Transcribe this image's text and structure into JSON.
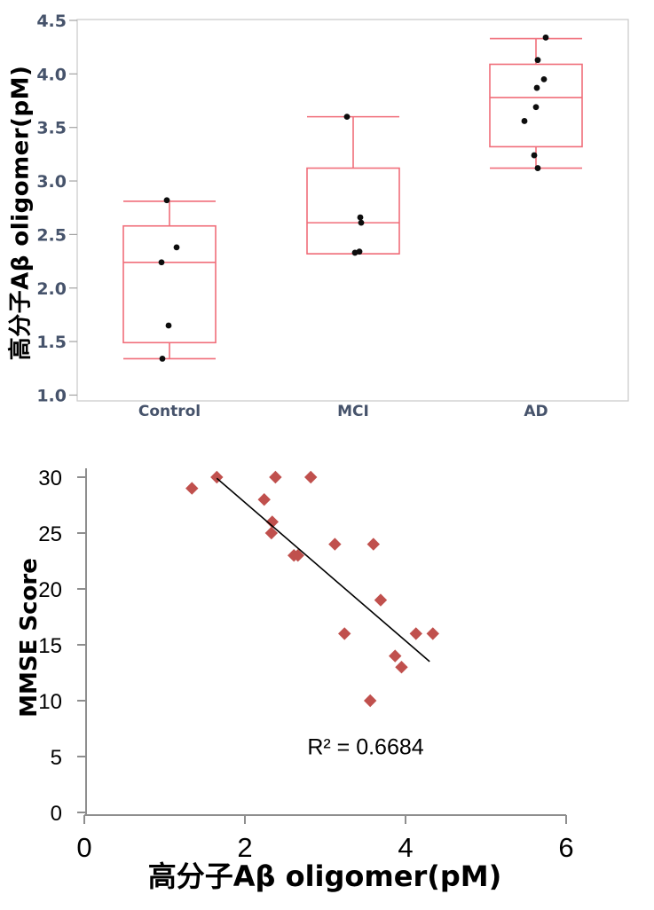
{
  "figure": {
    "background": "#ffffff"
  },
  "chart_data": [
    {
      "type": "box",
      "title": "",
      "ylabel": "高分子Aβ oligomer(pM)",
      "xlabel": "",
      "categories": [
        "Control",
        "MCI",
        "AD"
      ],
      "ylim": [
        1.0,
        4.5
      ],
      "ytick_labels": [
        "1.0",
        "1.5",
        "2.0",
        "2.5",
        "3.0",
        "3.5",
        "4.0",
        "4.5"
      ],
      "grid": false,
      "legend": "none",
      "box_color": "#f06e7a",
      "point_color": "#0d0d0d",
      "axis_text_color": "#46536b",
      "groups": [
        {
          "category": "Control",
          "whisker_low": 1.34,
          "q1": 1.49,
          "median": 2.24,
          "q3": 2.58,
          "whisker_high": 2.81,
          "points": [
            {
              "value": 2.82,
              "dx": -3
            },
            {
              "value": 2.38,
              "dx": 8
            },
            {
              "value": 2.24,
              "dx": -9
            },
            {
              "value": 1.65,
              "dx": -1
            },
            {
              "value": 1.34,
              "dx": -8
            }
          ]
        },
        {
          "category": "MCI",
          "whisker_low": 2.32,
          "q1": 2.32,
          "median": 2.61,
          "q3": 3.12,
          "whisker_high": 3.6,
          "points": [
            {
              "value": 3.6,
              "dx": -7
            },
            {
              "value": 2.66,
              "dx": 8
            },
            {
              "value": 2.61,
              "dx": 9
            },
            {
              "value": 2.33,
              "dx": 2
            },
            {
              "value": 2.34,
              "dx": 7
            }
          ]
        },
        {
          "category": "AD",
          "whisker_low": 3.12,
          "q1": 3.32,
          "median": 3.78,
          "q3": 4.09,
          "whisker_high": 4.33,
          "points": [
            {
              "value": 4.34,
              "dx": 11
            },
            {
              "value": 4.13,
              "dx": 2
            },
            {
              "value": 3.95,
              "dx": 9
            },
            {
              "value": 3.87,
              "dx": 1
            },
            {
              "value": 3.69,
              "dx": 0
            },
            {
              "value": 3.56,
              "dx": -13
            },
            {
              "value": 3.24,
              "dx": -2
            },
            {
              "value": 3.12,
              "dx": 2
            }
          ]
        }
      ]
    },
    {
      "type": "scatter",
      "title": "",
      "xlabel": "高分子Aβ oligomer(pM)",
      "ylabel": "MMSE Score",
      "xlim": [
        0,
        6
      ],
      "ylim": [
        0,
        30
      ],
      "xticks": [
        0,
        2,
        4,
        6
      ],
      "yticks": [
        0,
        5,
        10,
        15,
        20,
        25,
        30
      ],
      "grid": false,
      "legend": "none",
      "marker_shape": "diamond",
      "marker_color": "#c0504d",
      "axis_color": "#8e8e8e",
      "annotation": "R² = 0.6684",
      "trendline": {
        "x1": 1.65,
        "y1": 29.9,
        "x2": 4.3,
        "y2": 13.5,
        "color": "#000000"
      },
      "points": [
        [
          1.34,
          29
        ],
        [
          1.65,
          30
        ],
        [
          2.24,
          28
        ],
        [
          2.33,
          25
        ],
        [
          2.34,
          26
        ],
        [
          2.38,
          30
        ],
        [
          2.61,
          23
        ],
        [
          2.66,
          23
        ],
        [
          2.82,
          30
        ],
        [
          3.12,
          24
        ],
        [
          3.24,
          16
        ],
        [
          3.56,
          10
        ],
        [
          3.6,
          24
        ],
        [
          3.69,
          19
        ],
        [
          3.87,
          14
        ],
        [
          3.95,
          13
        ],
        [
          4.13,
          16
        ],
        [
          4.34,
          16
        ]
      ]
    }
  ]
}
